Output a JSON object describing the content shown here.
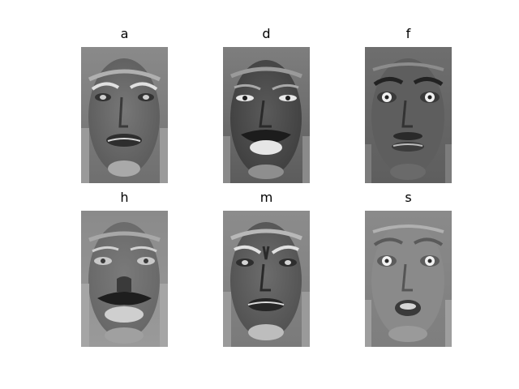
{
  "figure": {
    "panels": [
      {
        "id": "a",
        "label": "a",
        "expression": "anger",
        "tone": "dark"
      },
      {
        "id": "d",
        "label": "d",
        "expression": "disgust",
        "tone": "dark"
      },
      {
        "id": "f",
        "label": "f",
        "expression": "fear",
        "tone": "mid"
      },
      {
        "id": "h",
        "label": "h",
        "expression": "happiness",
        "tone": "dark"
      },
      {
        "id": "m",
        "label": "m",
        "expression": "sadness",
        "tone": "dark"
      },
      {
        "id": "s",
        "label": "s",
        "expression": "surprise",
        "tone": "light"
      }
    ],
    "colors": {
      "background": "#ffffff",
      "text": "#000000"
    },
    "image_kind": "grayscale face difference images"
  }
}
